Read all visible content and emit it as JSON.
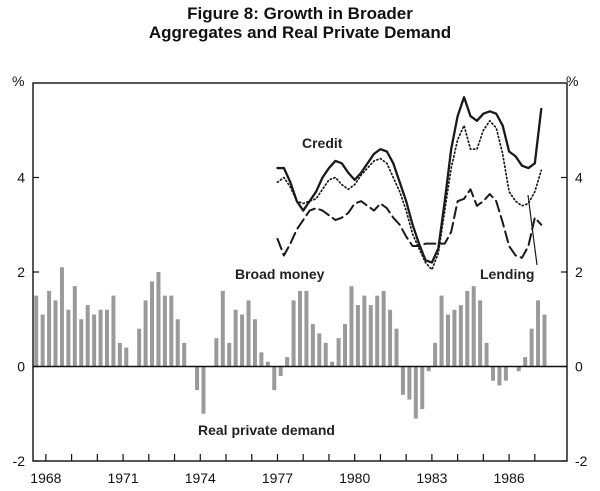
{
  "chart_data": {
    "type": "bar+line",
    "title": "Figure 8: Growth in Broader",
    "subtitle": "Aggregates and Real Private Demand",
    "ylabel_left": "%",
    "ylabel_right": "%",
    "ylim": [
      -2,
      6
    ],
    "yticks": [
      -2,
      0,
      2,
      4
    ],
    "xlim": [
      1967.5,
      1988.25
    ],
    "xticks": [
      "1968",
      "1971",
      "1974",
      "1977",
      "1980",
      "1983",
      "1986"
    ],
    "xtick_values": [
      1968,
      1971,
      1974,
      1977,
      1980,
      1983,
      1986
    ],
    "annotations": {
      "credit": "Credit",
      "broad_money": "Broad money",
      "lending": "Lending",
      "real_private_demand": "Real private demand"
    },
    "colors": {
      "bars": "#9a9a9a",
      "lines": "#1a1a1a",
      "axis": "#111111"
    },
    "bars": {
      "name": "Real private demand",
      "start": 1967.5,
      "step": 0.25,
      "values": [
        1.5,
        1.1,
        1.6,
        1.4,
        2.1,
        1.2,
        1.7,
        1.0,
        1.3,
        1.1,
        1.2,
        1.2,
        1.5,
        0.5,
        0.4,
        0.0,
        0.8,
        1.4,
        1.8,
        2.0,
        1.5,
        1.5,
        1.0,
        0.5,
        0.0,
        -0.5,
        -1.0,
        0.0,
        0.6,
        1.6,
        0.5,
        1.2,
        1.1,
        1.4,
        1.0,
        0.3,
        0.1,
        -0.5,
        -0.2,
        0.2,
        1.4,
        1.6,
        1.6,
        0.9,
        0.7,
        0.5,
        0.1,
        0.6,
        0.9,
        1.7,
        1.3,
        1.5,
        1.3,
        1.5,
        1.6,
        1.2,
        0.8,
        -0.6,
        -0.7,
        -1.1,
        -0.9,
        -0.1,
        0.5,
        1.5,
        1.1,
        1.2,
        1.3,
        1.6,
        1.7,
        1.4,
        0.5,
        -0.3,
        -0.4,
        -0.3,
        0.0,
        -0.1,
        0.2,
        0.8,
        1.4,
        1.1
      ]
    },
    "series": [
      {
        "name": "Credit",
        "style": "solid",
        "x": [
          1977.0,
          1977.25,
          1977.5,
          1977.75,
          1978.0,
          1978.25,
          1978.5,
          1978.75,
          1979.0,
          1979.25,
          1979.5,
          1979.75,
          1980.0,
          1980.25,
          1980.5,
          1980.75,
          1981.0,
          1981.25,
          1981.5,
          1981.75,
          1982.0,
          1982.25,
          1982.5,
          1982.75,
          1983.0,
          1983.25,
          1983.5,
          1983.75,
          1984.0,
          1984.25,
          1984.5,
          1984.75,
          1985.0,
          1985.25,
          1985.5,
          1985.75,
          1986.0,
          1986.25,
          1986.5,
          1986.75,
          1987.0,
          1987.25
        ],
        "values": [
          4.2,
          4.2,
          3.9,
          3.5,
          3.3,
          3.5,
          3.7,
          4.0,
          4.2,
          4.35,
          4.3,
          4.1,
          3.95,
          4.1,
          4.3,
          4.5,
          4.6,
          4.55,
          4.3,
          3.9,
          3.5,
          3.0,
          2.6,
          2.25,
          2.2,
          2.5,
          3.5,
          4.6,
          5.3,
          5.7,
          5.3,
          5.2,
          5.35,
          5.4,
          5.35,
          5.1,
          4.55,
          4.45,
          4.25,
          4.2,
          4.3,
          5.45
        ]
      },
      {
        "name": "Broad money",
        "style": "dotted",
        "x": [
          1977.0,
          1977.25,
          1977.5,
          1977.75,
          1978.0,
          1978.25,
          1978.5,
          1978.75,
          1979.0,
          1979.25,
          1979.5,
          1979.75,
          1980.0,
          1980.25,
          1980.5,
          1980.75,
          1981.0,
          1981.25,
          1981.5,
          1981.75,
          1982.0,
          1982.25,
          1982.5,
          1982.75,
          1983.0,
          1983.25,
          1983.5,
          1983.75,
          1984.0,
          1984.25,
          1984.5,
          1984.75,
          1985.0,
          1985.25,
          1985.5,
          1985.75,
          1986.0,
          1986.25,
          1986.5,
          1986.75,
          1987.0,
          1987.25
        ],
        "values": [
          3.9,
          4.0,
          3.8,
          3.5,
          3.45,
          3.5,
          3.55,
          3.75,
          3.95,
          4.0,
          3.85,
          3.75,
          3.85,
          4.05,
          4.2,
          4.35,
          4.4,
          4.3,
          4.0,
          3.7,
          3.3,
          2.8,
          2.5,
          2.2,
          2.05,
          2.4,
          3.3,
          4.2,
          4.8,
          5.1,
          4.6,
          4.6,
          5.0,
          5.2,
          5.05,
          4.5,
          3.7,
          3.5,
          3.4,
          3.45,
          3.7,
          4.15
        ]
      },
      {
        "name": "Lending",
        "style": "dashed",
        "x": [
          1977.0,
          1977.25,
          1977.5,
          1977.75,
          1978.0,
          1978.25,
          1978.5,
          1978.75,
          1979.0,
          1979.25,
          1979.5,
          1979.75,
          1980.0,
          1980.25,
          1980.5,
          1980.75,
          1981.0,
          1981.25,
          1981.5,
          1981.75,
          1982.0,
          1982.25,
          1982.5,
          1982.75,
          1983.0,
          1983.25,
          1983.5,
          1983.75,
          1984.0,
          1984.25,
          1984.5,
          1984.75,
          1985.0,
          1985.25,
          1985.5,
          1985.75,
          1986.0,
          1986.25,
          1986.5,
          1986.75,
          1987.0,
          1987.25
        ],
        "values": [
          2.7,
          2.35,
          2.6,
          2.9,
          3.1,
          3.3,
          3.35,
          3.3,
          3.2,
          3.1,
          3.15,
          3.25,
          3.45,
          3.5,
          3.4,
          3.3,
          3.45,
          3.35,
          3.15,
          3.0,
          2.75,
          2.55,
          2.55,
          2.6,
          2.6,
          2.6,
          2.6,
          2.85,
          3.5,
          3.55,
          3.75,
          3.4,
          3.5,
          3.65,
          3.5,
          3.05,
          2.55,
          2.35,
          2.3,
          2.55,
          3.15,
          3.0
        ]
      }
    ]
  }
}
